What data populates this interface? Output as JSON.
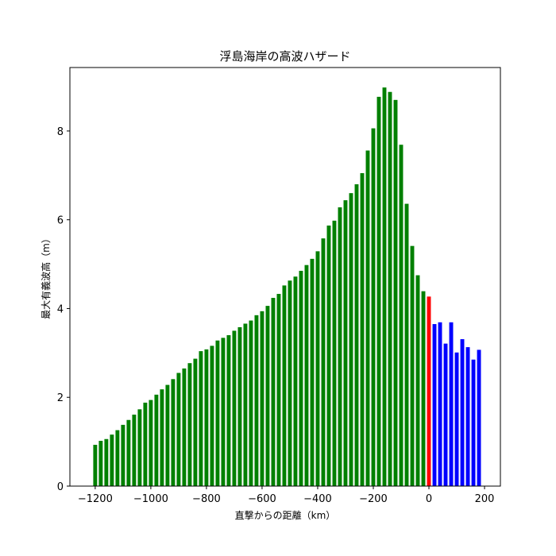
{
  "chart_data": {
    "type": "bar",
    "title": "浮島海岸の高波ハザード",
    "xlabel": "直撃からの距離（km）",
    "ylabel": "最大有義波高（m）",
    "x": [
      -1200,
      -1180,
      -1160,
      -1140,
      -1120,
      -1100,
      -1080,
      -1060,
      -1040,
      -1020,
      -1000,
      -980,
      -960,
      -940,
      -920,
      -900,
      -880,
      -860,
      -840,
      -820,
      -800,
      -780,
      -760,
      -740,
      -720,
      -700,
      -680,
      -660,
      -640,
      -620,
      -600,
      -580,
      -560,
      -540,
      -520,
      -500,
      -480,
      -460,
      -440,
      -420,
      -400,
      -380,
      -360,
      -340,
      -320,
      -300,
      -280,
      -260,
      -240,
      -220,
      -200,
      -180,
      -160,
      -140,
      -120,
      -100,
      -80,
      -60,
      -40,
      -20,
      0,
      20,
      40,
      60,
      80,
      100,
      120,
      140,
      160,
      180
    ],
    "values": [
      0.93,
      1.02,
      1.06,
      1.16,
      1.26,
      1.38,
      1.49,
      1.61,
      1.73,
      1.88,
      1.94,
      2.06,
      2.18,
      2.28,
      2.41,
      2.55,
      2.65,
      2.77,
      2.87,
      3.04,
      3.08,
      3.16,
      3.28,
      3.34,
      3.4,
      3.5,
      3.58,
      3.66,
      3.73,
      3.85,
      3.94,
      4.06,
      4.24,
      4.33,
      4.52,
      4.63,
      4.72,
      4.85,
      4.98,
      5.12,
      5.29,
      5.58,
      5.87,
      5.98,
      6.28,
      6.44,
      6.6,
      6.8,
      7.05,
      7.56,
      8.06,
      8.77,
      8.98,
      8.88,
      8.7,
      7.69,
      6.36,
      5.41,
      4.75,
      4.39,
      4.27,
      3.65,
      3.69,
      3.21,
      3.69,
      3.01,
      3.31,
      3.13,
      2.85,
      3.07
    ],
    "colors": [
      "green",
      "green",
      "green",
      "green",
      "green",
      "green",
      "green",
      "green",
      "green",
      "green",
      "green",
      "green",
      "green",
      "green",
      "green",
      "green",
      "green",
      "green",
      "green",
      "green",
      "green",
      "green",
      "green",
      "green",
      "green",
      "green",
      "green",
      "green",
      "green",
      "green",
      "green",
      "green",
      "green",
      "green",
      "green",
      "green",
      "green",
      "green",
      "green",
      "green",
      "green",
      "green",
      "green",
      "green",
      "green",
      "green",
      "green",
      "green",
      "green",
      "green",
      "green",
      "green",
      "green",
      "green",
      "green",
      "green",
      "green",
      "green",
      "green",
      "green",
      "red",
      "blue",
      "blue",
      "blue",
      "blue",
      "blue",
      "blue",
      "blue",
      "blue",
      "blue"
    ],
    "bar_width": 14,
    "xlim": [
      -1291,
      257
    ],
    "ylim": [
      0,
      9.43
    ],
    "xticks": [
      {
        "value": -1200,
        "label": "−1200"
      },
      {
        "value": -1000,
        "label": "−1000"
      },
      {
        "value": -800,
        "label": "−800"
      },
      {
        "value": -600,
        "label": "−600"
      },
      {
        "value": -400,
        "label": "−400"
      },
      {
        "value": -200,
        "label": "−200"
      },
      0,
      200
    ],
    "yticks": [
      0,
      2,
      4,
      6,
      8
    ]
  }
}
